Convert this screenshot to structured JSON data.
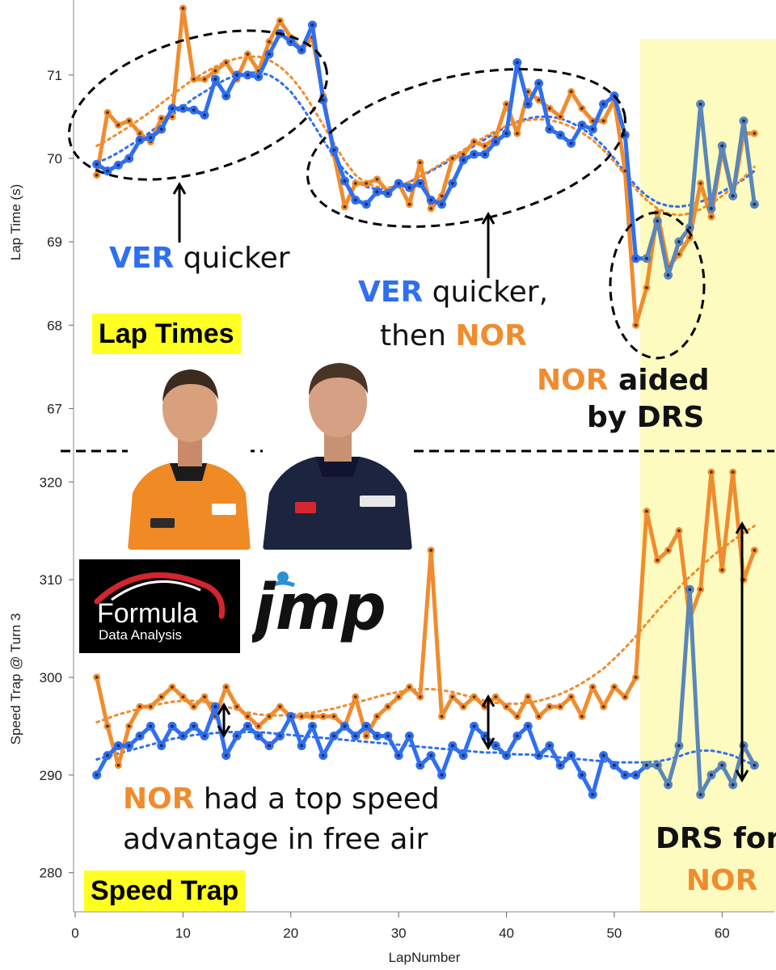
{
  "chart_data": [
    {
      "type": "line",
      "title": "",
      "xlabel": "",
      "ylabel": "Lap Time (s)",
      "ylim": [
        66.5,
        71.9
      ],
      "yticks": [
        67,
        68,
        69,
        70,
        71
      ],
      "x": [
        2,
        3,
        4,
        5,
        6,
        7,
        8,
        9,
        10,
        11,
        12,
        13,
        14,
        15,
        16,
        17,
        18,
        19,
        20,
        21,
        22,
        23,
        24,
        25,
        26,
        27,
        28,
        29,
        30,
        31,
        32,
        33,
        34,
        35,
        36,
        37,
        38,
        39,
        40,
        41,
        42,
        43,
        44,
        45,
        46,
        47,
        48,
        49,
        50,
        51,
        52,
        53,
        54,
        55,
        56,
        57,
        58,
        59,
        60,
        61,
        62,
        63
      ],
      "series": [
        {
          "name": "VER",
          "color": "#2f6ff0",
          "values": [
            69.93,
            69.85,
            69.92,
            70.0,
            70.22,
            70.25,
            70.35,
            70.6,
            70.6,
            70.58,
            70.52,
            70.95,
            70.75,
            71.0,
            71.0,
            70.98,
            71.25,
            71.5,
            71.4,
            71.3,
            71.6,
            70.7,
            70.1,
            69.73,
            69.5,
            69.45,
            69.6,
            69.58,
            69.7,
            69.65,
            69.7,
            69.5,
            69.45,
            69.7,
            69.98,
            70.05,
            70.05,
            70.2,
            70.3,
            71.15,
            70.65,
            70.9,
            70.35,
            70.28,
            70.18,
            70.4,
            70.35,
            70.65,
            70.75,
            70.28,
            68.8,
            68.8,
            69.25,
            68.6,
            69.0,
            69.17,
            70.65,
            69.4,
            70.15,
            69.55,
            70.45,
            69.45
          ],
          "colors_note": "laps 53-63 drawn in grey-blue"
        },
        {
          "name": "NOR",
          "color": "#f08c2e",
          "values": [
            69.8,
            70.55,
            70.4,
            70.45,
            70.3,
            70.2,
            70.48,
            70.5,
            71.8,
            70.95,
            70.95,
            71.05,
            71.15,
            70.95,
            71.25,
            71.05,
            71.4,
            71.65,
            71.45,
            71.3,
            71.45,
            70.75,
            70.05,
            69.42,
            69.7,
            69.7,
            69.75,
            69.6,
            69.7,
            69.45,
            69.95,
            69.4,
            69.55,
            70.0,
            70.05,
            70.2,
            70.15,
            70.25,
            70.65,
            70.3,
            70.8,
            70.7,
            70.6,
            70.5,
            70.8,
            70.6,
            70.45,
            70.45,
            70.7,
            69.85,
            68.0,
            68.45,
            69.35,
            68.7,
            68.85,
            69.05,
            69.7,
            69.3,
            70.1,
            69.55,
            70.3,
            70.3
          ]
        },
        {
          "name": "VER trend",
          "color": "#2f6ff0",
          "dashed": true,
          "values": [
            69.95,
            70.0,
            70.07,
            70.15,
            70.23,
            70.32,
            70.42,
            70.52,
            70.62,
            70.72,
            70.8,
            70.88,
            70.95,
            71.0,
            71.03,
            71.03,
            71.0,
            70.92,
            70.8,
            70.63,
            70.43,
            70.22,
            70.02,
            69.85,
            69.73,
            69.66,
            69.63,
            69.63,
            69.66,
            69.72,
            69.78,
            69.85,
            69.92,
            69.99,
            70.07,
            70.15,
            70.23,
            70.31,
            70.38,
            70.44,
            70.48,
            70.5,
            70.5,
            70.48,
            70.43,
            70.36,
            70.27,
            70.15,
            70.0,
            69.83,
            69.67,
            69.55,
            69.47,
            69.43,
            69.42,
            69.44,
            69.48,
            69.53,
            69.6,
            69.67,
            69.75,
            69.85
          ]
        },
        {
          "name": "NOR trend",
          "color": "#f08c2e",
          "dashed": true,
          "values": [
            70.15,
            70.22,
            70.3,
            70.38,
            70.47,
            70.56,
            70.66,
            70.76,
            70.86,
            70.95,
            71.03,
            71.1,
            71.16,
            71.2,
            71.22,
            71.22,
            71.18,
            71.1,
            70.98,
            70.82,
            70.62,
            70.4,
            70.18,
            69.97,
            69.8,
            69.7,
            69.66,
            69.65,
            69.67,
            69.72,
            69.79,
            69.86,
            69.94,
            70.02,
            70.1,
            70.18,
            70.26,
            70.33,
            70.39,
            70.43,
            70.46,
            70.47,
            70.46,
            70.43,
            70.38,
            70.31,
            70.22,
            70.1,
            69.96,
            69.8,
            69.63,
            69.5,
            69.4,
            69.34,
            69.32,
            69.34,
            69.39,
            69.46,
            69.55,
            69.65,
            69.77,
            69.9
          ]
        }
      ]
    },
    {
      "type": "line",
      "title": "",
      "xlabel": "LapNumber",
      "ylabel": "Speed Trap @ Turn 3",
      "ylim": [
        276,
        323
      ],
      "yticks": [
        280,
        290,
        300,
        310,
        320
      ],
      "xlim": [
        0,
        65
      ],
      "xticks": [
        0,
        10,
        20,
        30,
        40,
        50,
        60
      ],
      "x": [
        2,
        3,
        4,
        5,
        6,
        7,
        8,
        9,
        10,
        11,
        12,
        13,
        14,
        15,
        16,
        17,
        18,
        19,
        20,
        21,
        22,
        23,
        24,
        25,
        26,
        27,
        28,
        29,
        30,
        31,
        32,
        33,
        34,
        35,
        36,
        37,
        38,
        39,
        40,
        41,
        42,
        43,
        44,
        45,
        46,
        47,
        48,
        49,
        50,
        51,
        52,
        53,
        54,
        55,
        56,
        57,
        58,
        59,
        60,
        61,
        62,
        63
      ],
      "series": [
        {
          "name": "VER",
          "color": "#2f6ff0",
          "values": [
            290,
            292,
            293,
            293,
            294,
            295,
            293,
            295,
            294,
            295,
            294,
            297,
            292,
            294,
            295,
            294,
            293,
            294,
            296,
            293,
            295,
            292,
            294,
            295,
            294,
            295,
            294,
            294,
            292,
            294,
            291,
            292,
            290,
            293,
            292,
            295,
            294,
            293,
            292,
            294,
            295,
            292,
            293,
            291,
            292,
            290,
            288,
            292,
            291,
            290,
            290,
            291,
            291,
            289,
            293,
            309,
            288,
            290,
            291,
            289,
            293,
            291
          ],
          "colors_note": "laps 53-63 drawn in grey-blue"
        },
        {
          "name": "NOR",
          "color": "#f08c2e",
          "values": [
            300,
            295,
            291,
            295,
            297,
            297,
            298,
            299,
            298,
            297,
            298,
            296,
            299,
            297,
            296,
            295,
            296,
            297,
            296,
            296,
            296,
            296,
            296,
            295,
            298,
            294,
            296,
            297,
            298,
            299,
            298,
            313,
            296,
            298,
            297,
            298,
            297,
            298,
            297,
            296,
            298,
            296,
            297,
            297,
            298,
            296,
            299,
            297,
            299,
            298,
            300,
            317,
            312,
            313,
            315,
            306,
            309,
            321,
            311,
            321,
            310,
            313
          ],
          "colors_note": "laps 53-63 drawn in orange"
        },
        {
          "name": "VER trend",
          "color": "#2f6ff0",
          "dashed": true,
          "values": [
            291.6,
            291.9,
            292.2,
            292.5,
            292.8,
            293.1,
            293.4,
            293.7,
            293.9,
            294.1,
            294.2,
            294.3,
            294.4,
            294.4,
            294.4,
            294.4,
            294.3,
            294.2,
            294.1,
            294.0,
            293.9,
            293.8,
            293.7,
            293.6,
            293.5,
            293.4,
            293.3,
            293.2,
            293.1,
            293.0,
            292.9,
            292.8,
            292.7,
            292.6,
            292.5,
            292.4,
            292.3,
            292.3,
            292.2,
            292.1,
            292.1,
            292.0,
            291.9,
            291.8,
            291.7,
            291.6,
            291.5,
            291.4,
            291.3,
            291.3,
            291.3,
            291.3,
            291.4,
            291.6,
            291.9,
            292.3,
            292.5,
            292.5,
            292.3,
            292.0,
            291.5,
            291.0
          ]
        },
        {
          "name": "NOR trend",
          "color": "#f08c2e",
          "dashed": true,
          "values": [
            295.4,
            295.8,
            296.2,
            296.5,
            296.8,
            297.1,
            297.3,
            297.5,
            297.6,
            297.6,
            297.5,
            297.3,
            297.0,
            296.7,
            296.4,
            296.2,
            296.1,
            296.1,
            296.2,
            296.3,
            296.4,
            296.6,
            296.8,
            297.1,
            297.4,
            297.7,
            298.0,
            298.3,
            298.5,
            298.7,
            298.8,
            298.8,
            298.7,
            298.5,
            298.2,
            297.9,
            297.6,
            297.4,
            297.3,
            297.3,
            297.4,
            297.6,
            297.9,
            298.3,
            298.8,
            299.4,
            300.1,
            300.9,
            301.9,
            303.0,
            304.2,
            305.5,
            306.8,
            308.0,
            309.2,
            310.3,
            311.3,
            312.3,
            313.2,
            314.0,
            314.8,
            315.5
          ]
        }
      ]
    }
  ],
  "annotations": {
    "ver1": {
      "team": "VER",
      "rest": " quicker"
    },
    "ver2": {
      "team": "VER",
      "rest": " quicker,"
    },
    "then": "then ",
    "then_nor": "NOR",
    "aided": {
      "team": "NOR",
      "rest": " aided",
      "line2": "by DRS"
    },
    "speed_note": {
      "team": "NOR",
      "rest": " had a top speed",
      "line2": "advantage in free air"
    },
    "drs_for": {
      "line1": "DRS for",
      "line2": "NOR"
    },
    "lap_times_label": "Lap Times",
    "speed_trap_label": "Speed Trap"
  },
  "logos": {
    "fda_line1": "Formula",
    "fda_line2": "Data Analysis",
    "jmp": "jmp"
  },
  "colors": {
    "ver": "#2f6ff0",
    "ver_late": "#5a86b8",
    "nor": "#f08c2e",
    "drs_band": "#fdfbc0",
    "highlight": "#ffff22"
  }
}
